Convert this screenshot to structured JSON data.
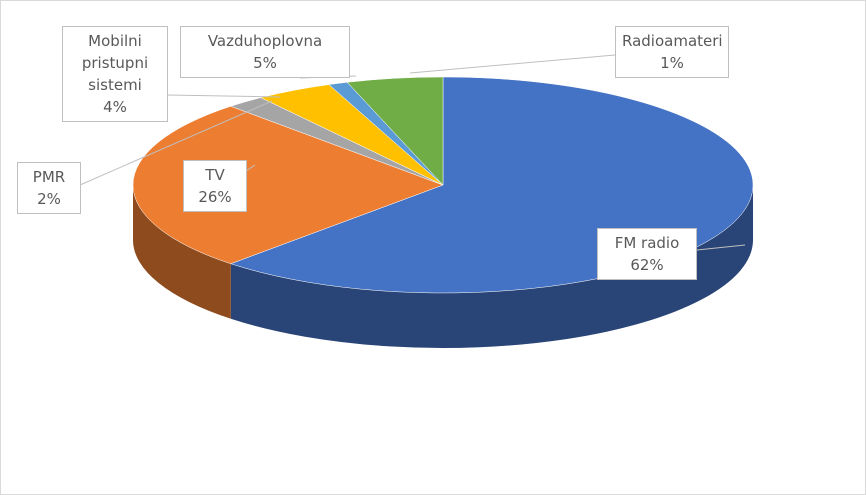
{
  "chart_data": {
    "type": "pie3d",
    "categories": [
      "FM radio",
      "TV",
      "PMR",
      "Mobilni pristupni sistemi",
      "Radioamateri",
      "Vazduhoplovna"
    ],
    "values": [
      62,
      26,
      2,
      4,
      1,
      5
    ],
    "value_labels": [
      "62%",
      "26%",
      "2%",
      "4%",
      "1%",
      "5%"
    ],
    "colors": [
      "#4472c4",
      "#ed7d31",
      "#a5a5a5",
      "#ffc000",
      "#5b9bd5",
      "#70ad47"
    ]
  }
}
